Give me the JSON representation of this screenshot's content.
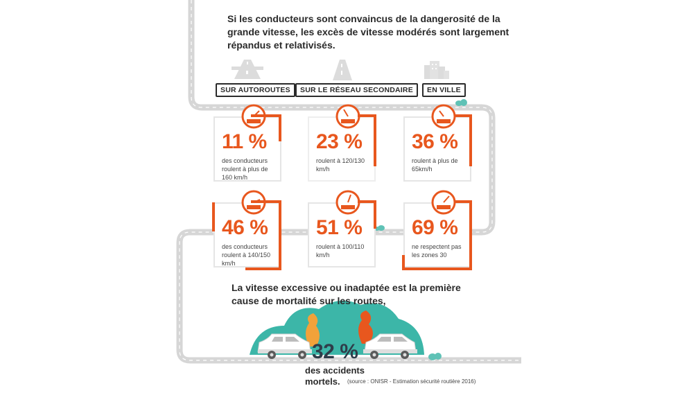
{
  "intro_text": "Si les conducteurs sont convaincus de la dangerosité de la grande vitesse, les excès de vitesse modérés sont largement répandus et relativisés.",
  "signs": {
    "autoroutes": "SUR AUTOROUTES",
    "secondaire": "SUR LE RÉSEAU SECONDAIRE",
    "ville": "EN VILLE"
  },
  "cards": [
    {
      "pct": "11 %",
      "desc": "des conducteurs roulent à plus de 160 km/h",
      "gauge": "160"
    },
    {
      "pct": "23 %",
      "desc": "roulent à 120/130 km/h",
      "gauge": "120/130"
    },
    {
      "pct": "36 %",
      "desc": "roulent à plus de 65km/h",
      "gauge": "65"
    },
    {
      "pct": "46 %",
      "desc": "des conducteurs roulent à 140/150 km/h",
      "gauge": "140/150"
    },
    {
      "pct": "51 %",
      "desc": "roulent à 100/110 km/h",
      "gauge": "100/110"
    },
    {
      "pct": "69 %",
      "desc": "ne respectent pas les zones 30",
      "gauge": "> 30"
    }
  ],
  "cause_text": "La vitesse excessive ou inadaptée est la première cause de mortalité sur les routes,",
  "big_pct": "32 %",
  "bottom_label_1": "des accidents",
  "bottom_label_2": "mortels.",
  "source": "(source : ONISR - Estimation sécurité routière 2016)",
  "colors": {
    "accent": "#e8571e",
    "teal": "#3cb6a8",
    "road": "#d8d8d8",
    "dark": "#2a2a2a"
  }
}
